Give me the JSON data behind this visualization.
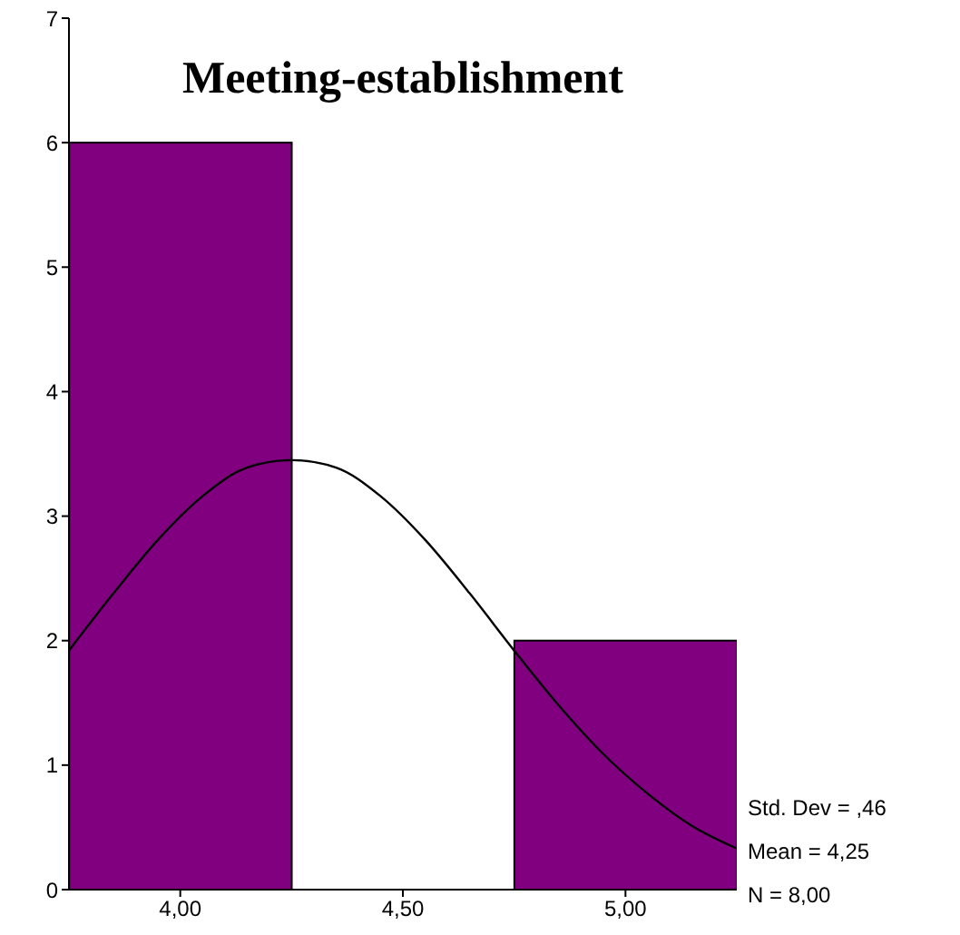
{
  "chart_data": {
    "type": "histogram",
    "title": "Meeting-establishment",
    "bins": [
      3.75,
      4.25,
      4.75,
      5.25
    ],
    "values": [
      6,
      0,
      2
    ],
    "color": "#800080",
    "xlim": [
      3.75,
      5.25
    ],
    "xticks": [
      {
        "value": 4,
        "label": "4,00"
      },
      {
        "value": 4.5,
        "label": "4,50"
      },
      {
        "value": 5,
        "label": "5,00"
      }
    ],
    "ylim": [
      0,
      7
    ],
    "yticks": [
      0,
      1,
      2,
      3,
      4,
      5,
      6,
      7
    ],
    "series": [
      {
        "type": "line",
        "color": "#000000",
        "x": [
          3.75,
          3.85,
          3.95,
          4.05,
          4.15,
          4.25,
          4.35,
          4.45,
          4.55,
          4.65,
          4.75,
          4.85,
          4.95,
          5.05,
          5.15,
          5.25
        ],
        "values": [
          1.92,
          2.38,
          2.81,
          3.16,
          3.39,
          3.45,
          3.39,
          3.16,
          2.81,
          2.38,
          1.92,
          1.48,
          1.09,
          0.77,
          0.51,
          0.33
        ]
      }
    ],
    "annotations": [
      "Std. Dev = ,46",
      "Mean = 4,25",
      "N = 8,00"
    ],
    "grid": false,
    "marker": "none"
  }
}
